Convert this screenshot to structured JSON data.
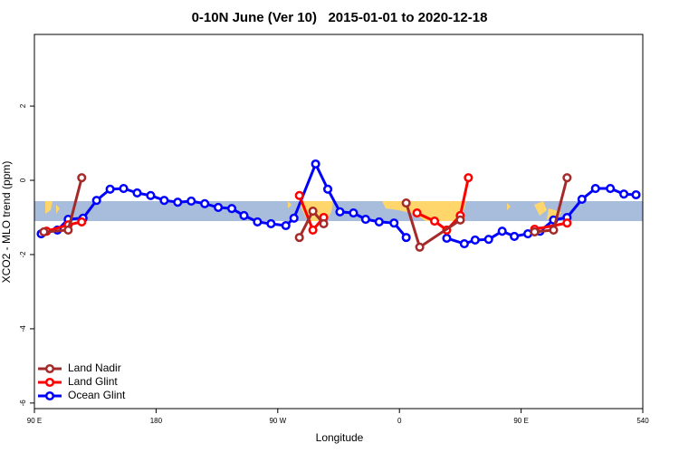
{
  "chart_data": {
    "type": "line",
    "title": "0-10N June (Ver 10)   2015-01-01 to 2020-12-18",
    "x_label": "Longitude",
    "y_label": "XCO2 - MLO trend (ppm)",
    "xlim": [
      90,
      540
    ],
    "ylim": [
      -6.15,
      3.93
    ],
    "xticks": [
      {
        "value": 90,
        "label": "90 E"
      },
      180,
      {
        "value": 270,
        "label": "90 W"
      },
      {
        "value": 360,
        "label": "0"
      },
      {
        "value": 450,
        "label": "90 E"
      },
      540
    ],
    "yticks": [
      -6,
      -4,
      -2,
      0,
      2
    ],
    "grid": false,
    "legend": "bottom-left",
    "series": [
      {
        "name": "Land Nadir",
        "color": "#a52a2a",
        "x": [
          97,
          115,
          125,
          null,
          286,
          296,
          304,
          null,
          365,
          375,
          405,
          null,
          460,
          474,
          484
        ],
        "values": [
          -1.39,
          -1.34,
          0.07,
          null,
          -1.54,
          -0.83,
          -1.17,
          null,
          -0.61,
          -1.8,
          -1.07,
          null,
          -1.39,
          -1.34,
          0.07
        ]
      },
      {
        "name": "Land Glint",
        "color": "#ff0000",
        "x": [
          99,
          115,
          125,
          null,
          286,
          296,
          304,
          null,
          373,
          386,
          395,
          405,
          411,
          null,
          460,
          484
        ],
        "values": [
          -1.37,
          -1.2,
          -1.12,
          null,
          -0.41,
          -1.34,
          -1.0,
          null,
          -0.88,
          -1.1,
          -1.34,
          -0.95,
          0.07,
          null,
          -1.32,
          -1.15
        ]
      },
      {
        "name": "Ocean Glint",
        "color": "#0000ff",
        "x": [
          95,
          107,
          115,
          126,
          136,
          146,
          156,
          166,
          176,
          186,
          196,
          206,
          216,
          226,
          236,
          245,
          255,
          265,
          276,
          282,
          298,
          307,
          316,
          326,
          335,
          345,
          356,
          365,
          null,
          395,
          408,
          416,
          426,
          436,
          445,
          455,
          464,
          474,
          484,
          495,
          505,
          516,
          526,
          535
        ],
        "values": [
          -1.44,
          -1.34,
          -1.05,
          -1.02,
          -0.54,
          -0.24,
          -0.22,
          -0.34,
          -0.41,
          -0.54,
          -0.59,
          -0.56,
          -0.63,
          -0.73,
          -0.76,
          -0.95,
          -1.12,
          -1.17,
          -1.22,
          -1.02,
          0.44,
          -0.24,
          -0.85,
          -0.88,
          -1.05,
          -1.12,
          -1.15,
          -1.54,
          null,
          -1.56,
          -1.71,
          -1.61,
          -1.59,
          -1.37,
          -1.51,
          -1.44,
          -1.37,
          -1.07,
          -1.0,
          -0.51,
          -0.22,
          -0.22,
          -0.37,
          -0.39
        ]
      }
    ]
  }
}
